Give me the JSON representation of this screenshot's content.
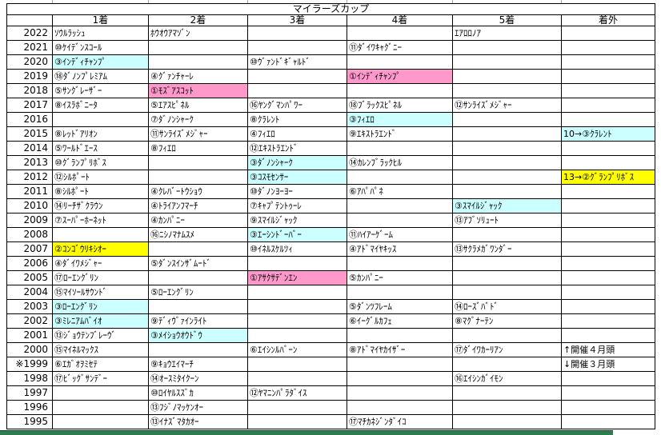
{
  "table": {
    "title": "マイラーズカップ",
    "columns": [
      "",
      "1着",
      "2着",
      "3着",
      "4着",
      "5着",
      "着外"
    ],
    "rows": [
      {
        "year": "2022",
        "cells": [
          {
            "t": "ｿｳﾙﾗｯｼｭ"
          },
          {
            "t": "ﾎｳｵｳｱﾏｿﾞﾝ"
          },
          {},
          {},
          {
            "t": "ｴｱﾛﾛﾉｱ"
          },
          {}
        ]
      },
      {
        "year": "2021",
        "cells": [
          {
            "t": "⑩ｹｲﾃﾞﾝｽｺｰﾙ"
          },
          {},
          {},
          {
            "t": "⑪ﾀﾞｲﾜｷｬｸﾞﾆｰ"
          },
          {},
          {}
        ]
      },
      {
        "year": "2020",
        "cells": [
          {
            "t": "③ｲﾝﾃﾞｨﾁｬﾝﾌﾟ",
            "hl": "cyan"
          },
          {},
          {
            "t": "⑩ｳﾞｧﾝﾄﾞｷﾞｬﾙﾄﾞ"
          },
          {},
          {},
          {}
        ]
      },
      {
        "year": "2019",
        "cells": [
          {
            "t": "⑱ﾀﾞﾉﾝﾌﾟﾚﾐｱﾑ"
          },
          {
            "t": "④ｸﾞｧﾝﾁｬｰﾚ"
          },
          {},
          {
            "t": "①ｲﾝﾃﾞｨﾁｬﾝﾌﾟ",
            "hl": "pink"
          },
          {},
          {}
        ]
      },
      {
        "year": "2018",
        "cells": [
          {
            "t": "⑤ｻﾝｸﾞﾚｰｻﾞｰ"
          },
          {
            "t": "①ﾓｽﾞｱｽｺｯﾄ",
            "hl": "pink"
          },
          {},
          {},
          {},
          {}
        ]
      },
      {
        "year": "2017",
        "cells": [
          {
            "t": "⑧ｲｽﾗﾎﾞﾆｰﾀ"
          },
          {
            "t": "⑤ｴｱｽﾋﾟﾈﾙ"
          },
          {
            "t": "⑯ﾔﾝｸﾞﾏﾝﾊﾟﾜｰ"
          },
          {
            "t": "⑱ﾌﾞﾗｯｸｽﾋﾟﾈﾙ"
          },
          {
            "t": "⑫ｻﾝﾗｲｽﾞﾒｼﾞｬｰ"
          },
          {}
        ]
      },
      {
        "year": "2016",
        "cells": [
          {},
          {
            "t": "⑦ﾀﾞﾉﾝｼｬｰｸ"
          },
          {
            "t": "⑧ｸﾗﾚﾝﾄ"
          },
          {
            "t": "③ﾌｨｴﾛ",
            "hl": "cyan"
          },
          {},
          {}
        ]
      },
      {
        "year": "2015",
        "cells": [
          {
            "t": "⑧ﾚｯﾄﾞｱﾘｵﾝ"
          },
          {
            "t": "⑪ｻﾝﾗｲｽﾞﾒｼﾞｬｰ"
          },
          {
            "t": "④ﾌｨｴﾛ"
          },
          {
            "t": "⑨ｴｷｽﾄﾗｴﾝﾄﾞ"
          },
          {},
          {
            "t": "10→③ｸﾗﾚﾝﾄ",
            "hl": "cyan"
          }
        ]
      },
      {
        "year": "2014",
        "cells": [
          {
            "t": "⑤ﾜｰﾙﾄﾞｴｰｽ"
          },
          {
            "t": "⑧ﾌｨｴﾛ"
          },
          {
            "t": "⑫ｴｷｽﾄﾗｴﾝﾄﾞ"
          },
          {},
          {},
          {}
        ]
      },
      {
        "year": "2013",
        "cells": [
          {
            "t": "⑩ｸﾞﾗﾝﾌﾟﾘﾎﾞｽ"
          },
          {},
          {
            "t": "③ﾀﾞﾉﾝｼｬｰｸ",
            "hl": "cyan"
          },
          {
            "t": "⑭ｶﾚﾝﾌﾞﾗｯｸﾋﾙ"
          },
          {},
          {}
        ]
      },
      {
        "year": "2012",
        "cells": [
          {
            "t": "⑫ｼﾙﾎﾟｰﾄ"
          },
          {},
          {
            "t": "③ｺｽﾓｾﾝｻｰ",
            "hl": "cyan"
          },
          {},
          {},
          {
            "t": "13→②ｸﾞﾗﾝﾌﾟﾘﾎﾞｽ",
            "hl": "yellow"
          }
        ]
      },
      {
        "year": "2011",
        "cells": [
          {
            "t": "⑧ｼﾙﾎﾟｰﾄ"
          },
          {
            "t": "④ｸﾚﾊﾞｰﾄｳｼｮｳ"
          },
          {
            "t": "⑩ﾀﾞﾉﾝﾖｰﾖｰ"
          },
          {
            "t": "⑥ｱﾊﾟﾊﾟﾈ"
          },
          {},
          {}
        ]
      },
      {
        "year": "2010",
        "cells": [
          {
            "t": "⑭ﾘｰﾁｻﾞｸﾗｳﾝ"
          },
          {
            "t": "④ﾄﾗｲｱﾝﾌﾏｰﾁ"
          },
          {
            "t": "⑦ｷｬﾌﾟﾃﾝﾄｩｰﾚ"
          },
          {},
          {
            "t": "③ｽﾏｲﾙｼﾞｬｯｸ",
            "hl": "cyan"
          },
          {}
        ]
      },
      {
        "year": "2009",
        "cells": [
          {
            "t": "⑦ｽｰﾊﾟｰﾎｰﾈｯﾄ"
          },
          {
            "t": "④ｶﾝﾊﾟﾆｰ"
          },
          {
            "t": "⑨ｽﾏｲﾙｼﾞｬｯｸ"
          },
          {},
          {
            "t": "⑬ｱﾌﾞｿﾘｭｰﾄ"
          },
          {}
        ]
      },
      {
        "year": "2008",
        "cells": [
          {},
          {
            "t": "⑯ﾆｼﾉﾏﾅﾑｽﾒ"
          },
          {
            "t": "③ｴｰｼﾝﾄﾞｰﾊﾞｰ",
            "hl": "cyan"
          },
          {
            "t": "⑪ﾊｲｱｰｹﾞｰﾑ"
          },
          {},
          {}
        ]
      },
      {
        "year": "2007",
        "cells": [
          {
            "t": "②ｺﾝｺﾞｳﾘｷｼｵｰ",
            "hl": "yellow"
          },
          {},
          {
            "t": "⑩ｲﾈﾙｽｹﾙﾂｨ"
          },
          {
            "t": "④ｱﾄﾞﾏｲﾔｷｯｽ"
          },
          {
            "t": "⑬ｻｸﾗﾒｶﾞﾜﾝﾀﾞｰ"
          },
          {}
        ]
      },
      {
        "year": "2006",
        "cells": [
          {
            "t": "④ﾀﾞｲﾜﾒｼﾞｬｰ"
          },
          {
            "t": "⑤ﾀﾞﾝｽｲﾝｻﾞﾑｰﾄﾞ"
          },
          {},
          {},
          {},
          {}
        ]
      },
      {
        "year": "2005",
        "cells": [
          {
            "t": "⑰ﾛｰｴﾝｸﾞﾘﾝ"
          },
          {},
          {
            "t": "①ｱｻｸｻﾃﾞﾝｴﾝ",
            "hl": "pink"
          },
          {
            "t": "⑤ｶﾝﾊﾟﾆｰ"
          },
          {},
          {}
        ]
      },
      {
        "year": "2004",
        "cells": [
          {
            "t": "⑮ﾏｲｿｰﾙｻｳﾝﾄﾞ"
          },
          {
            "t": "⑤ﾛｰｴﾝｸﾞﾘﾝ"
          },
          {},
          {},
          {},
          {}
        ]
      },
      {
        "year": "2003",
        "cells": [
          {
            "t": "③ﾛｰｴﾝｸﾞﾘﾝ",
            "hl": "cyan"
          },
          {},
          {},
          {
            "t": "⑤ﾀﾞﾝﾂﾌﾚｰﾑ"
          },
          {
            "t": "⑭ﾛｰｽﾞﾊﾞﾄﾞ"
          },
          {}
        ]
      },
      {
        "year": "2002",
        "cells": [
          {
            "t": "③ﾐﾚﾆｱﾑﾊﾞｲｵ",
            "hl": "cyan"
          },
          {
            "t": "⑨ﾃﾞｨｳﾞｧｲﾝﾗｲﾄ"
          },
          {},
          {
            "t": "⑥ｲｰｸﾞﾙｶﾌｪ"
          },
          {
            "t": "⑧ﾏｸﾞﾅｰﾃﾝ"
          },
          {}
        ]
      },
      {
        "year": "2001",
        "cells": [
          {
            "t": "⑬ｼﾞｮｳﾃﾝﾌﾞﾚｰｳﾞ"
          },
          {
            "t": "③ﾒｲｼｮｳｵｳﾄﾞｳ",
            "hl": "cyan"
          },
          {},
          {},
          {},
          {}
        ]
      },
      {
        "year": "2000",
        "cells": [
          {
            "t": "⑮ﾏｲﾈﾙﾏｯｸｽ"
          },
          {},
          {
            "t": "⑥ｴｲｼﾝﾙﾊﾞｰﾝ"
          },
          {
            "t": "⑧ｱﾄﾞﾏｲﾔｶｲｻﾞｰ"
          },
          {
            "t": "⑰ﾀﾞｲﾜｶｰﾘｱﾝ"
          },
          {
            "t": "↑開催４月頭"
          }
        ]
      },
      {
        "year": "※1999",
        "cells": [
          {
            "t": "⑥ｴｶﾞｵｦﾐｾﾃ"
          },
          {
            "t": "⑨ｷｮｳｴｲﾏｰﾁ"
          },
          {},
          {},
          {},
          {
            "t": "↓開催３月頭"
          }
        ]
      },
      {
        "year": "1998",
        "cells": [
          {
            "t": "⑰ﾋﾞｯｸﾞｻﾝﾃﾞｰ"
          },
          {
            "t": "⑭ｵｰｽﾐﾀｲｸｰﾝ"
          },
          {},
          {},
          {
            "t": "⑯ｴｲｼﾝｶﾞｲﾓﾝ"
          },
          {}
        ]
      },
      {
        "year": "1997",
        "cells": [
          {},
          {
            "t": "⑩ﾛｲﾔﾙｽｽﾞｶ"
          },
          {
            "t": "⑫ﾔﾏﾆﾝﾊﾟﾗﾀﾞｲｽ"
          },
          {},
          {},
          {}
        ]
      },
      {
        "year": "1996",
        "cells": [
          {},
          {
            "t": "⑬ﾌｼﾞﾉﾏｯｹﾝｵｰ"
          },
          {},
          {},
          {},
          {}
        ]
      },
      {
        "year": "1995",
        "cells": [
          {},
          {
            "t": "⑬ｲﾅｽﾞﾏﾀｶｵｰ"
          },
          {},
          {
            "t": "⑰ﾏﾁｶﾈｼﾞﾝﾀﾞｲｺ"
          },
          {},
          {}
        ]
      }
    ]
  },
  "colors": {
    "highlight_pink": "#FF99CC",
    "highlight_yellow": "#FFFF00",
    "highlight_cyan": "#CCFFFF",
    "grid_line": "#000000",
    "bottom_bar_green": "#2E7D4F"
  }
}
